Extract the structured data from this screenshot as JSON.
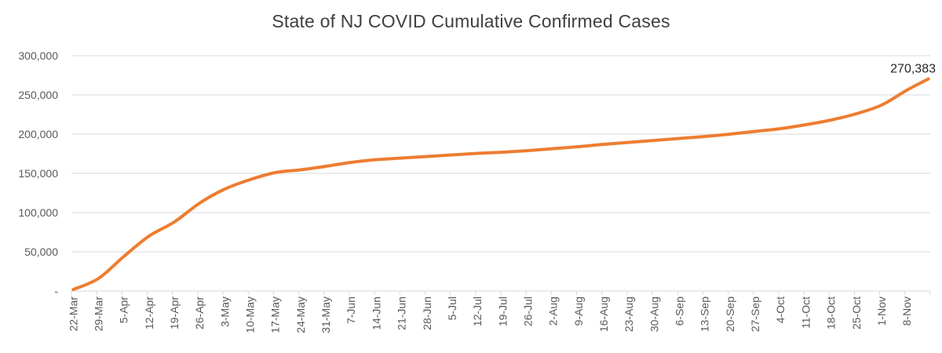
{
  "colors": {
    "line": "#ED7D31",
    "gridline": "#D9D9D9",
    "axis_line": "#D9D9D9",
    "axis_text": "#595959",
    "title_text": "#404040",
    "annotation_text": "#262626",
    "background": "#FFFFFF"
  },
  "chart_data": {
    "type": "line",
    "title": "State of NJ COVID Cumulative Confirmed Cases",
    "xlabel": "",
    "ylabel": "",
    "grid": true,
    "legend": false,
    "ylim": [
      0,
      300000
    ],
    "ytick_step": 50000,
    "y_ticks": [
      {
        "value": 0,
        "label": "-"
      },
      {
        "value": 50000,
        "label": "50,000"
      },
      {
        "value": 100000,
        "label": "100,000"
      },
      {
        "value": 150000,
        "label": "150,000"
      },
      {
        "value": 200000,
        "label": "200,000"
      },
      {
        "value": 250000,
        "label": "250,000"
      },
      {
        "value": 300000,
        "label": "300,000"
      }
    ],
    "categories": [
      "22-Mar",
      "29-Mar",
      "5-Apr",
      "12-Apr",
      "19-Apr",
      "26-Apr",
      "3-May",
      "10-May",
      "17-May",
      "24-May",
      "31-May",
      "7-Jun",
      "14-Jun",
      "21-Jun",
      "28-Jun",
      "5-Jul",
      "12-Jul",
      "19-Jul",
      "26-Jul",
      "2-Aug",
      "9-Aug",
      "16-Aug",
      "23-Aug",
      "30-Aug",
      "6-Sep",
      "13-Sep",
      "20-Sep",
      "27-Sep",
      "4-Oct",
      "11-Oct",
      "18-Oct",
      "25-Oct",
      "1-Nov",
      "8-Nov"
    ],
    "values": [
      1900,
      16000,
      44000,
      70000,
      88000,
      112000,
      130000,
      142000,
      151000,
      154500,
      159000,
      164000,
      167500,
      169500,
      171500,
      173500,
      175500,
      177000,
      179000,
      181500,
      184000,
      187000,
      189500,
      192000,
      194500,
      197000,
      200000,
      203500,
      207000,
      212000,
      218000,
      226000,
      237000,
      256000
    ],
    "series_name": "Cumulative confirmed cases",
    "end_annotation": {
      "label": "270,383",
      "value": 270383,
      "days_past_last_label": 6
    }
  }
}
